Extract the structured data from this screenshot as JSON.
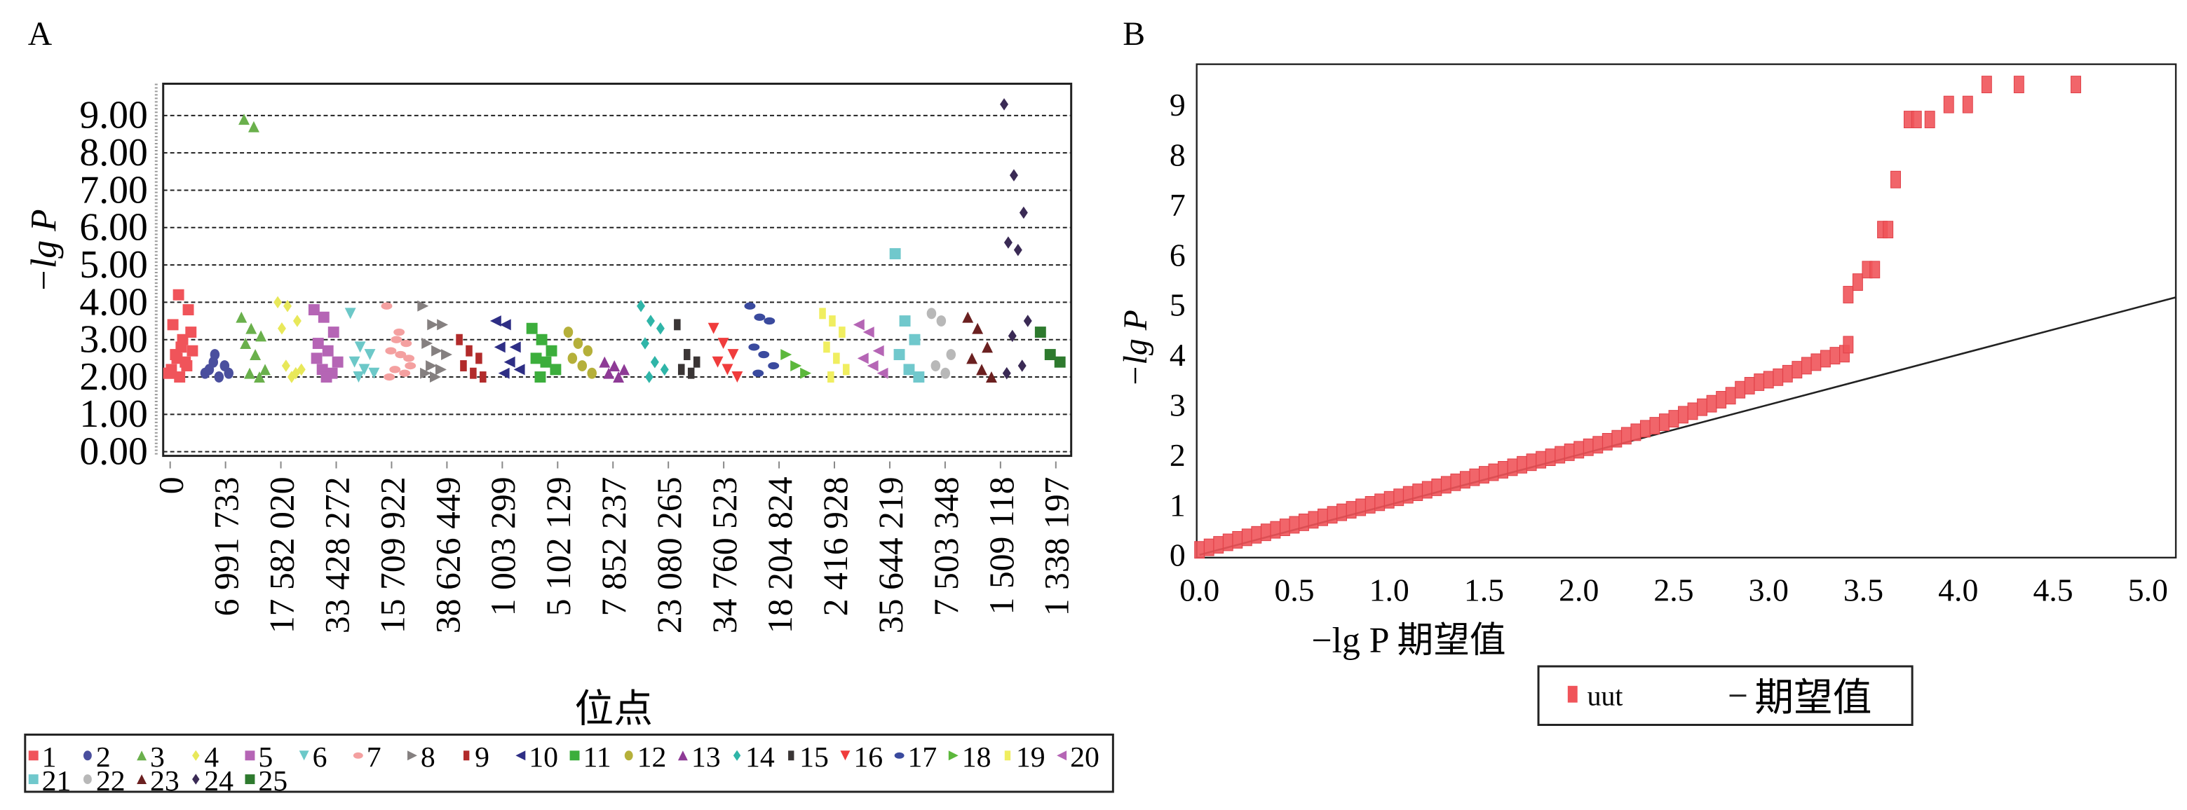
{
  "chart_data": [
    {
      "panel_label": "A",
      "type": "scatter",
      "subtype": "manhattan",
      "ylabel": "−lg P",
      "xlabel": "位点",
      "ylim": [
        0,
        9.8
      ],
      "y_ticks": [
        "0.00",
        "1.00",
        "2.00",
        "3.00",
        "4.00",
        "5.00",
        "6.00",
        "7.00",
        "8.00",
        "9.00"
      ],
      "grid": "horizontal dashed",
      "x_tick_labels": [
        "0",
        "6 991 733",
        "17 582 020",
        "33 428 272",
        "15 709 922",
        "38 626 449",
        "1 003 299",
        "5 102 129",
        "7 852 237",
        "23 080 265",
        "34 760 523",
        "18 204 824",
        "2 416 928",
        "35 644 219",
        "7 503 348",
        "1 509 118",
        "1 338 197"
      ],
      "legend_position": "bottom",
      "series": [
        {
          "name": "1",
          "color": "#f0545a",
          "marker": "square",
          "values": [
            2.1,
            4.2,
            3.8,
            3.4,
            3.0,
            2.7,
            2.5,
            2.3,
            2.2,
            2.8,
            3.2,
            2.6,
            2.4,
            2.1,
            2.0
          ]
        },
        {
          "name": "2",
          "color": "#4a4f9e",
          "marker": "circle",
          "values": [
            2.1,
            2.6,
            2.3,
            2.2,
            2.0,
            2.1,
            2.4
          ]
        },
        {
          "name": "3",
          "color": "#6ab04c",
          "marker": "triangle-up",
          "values": [
            3.6,
            3.3,
            3.1,
            2.9,
            2.6,
            2.2,
            2.1,
            2.0,
            8.9,
            8.7
          ]
        },
        {
          "name": "4",
          "color": "#e8e85a",
          "marker": "diamond",
          "values": [
            4.0,
            3.9,
            3.5,
            3.3,
            2.0,
            2.2,
            2.3,
            2.1
          ]
        },
        {
          "name": "5",
          "color": "#b565b5",
          "marker": "square",
          "values": [
            3.8,
            3.6,
            3.2,
            2.9,
            2.7,
            2.4,
            2.2,
            2.1,
            2.5,
            2.0
          ]
        },
        {
          "name": "6",
          "color": "#6cc8c8",
          "marker": "triangle-down",
          "values": [
            3.7,
            2.8,
            2.6,
            2.4,
            2.2,
            2.1,
            2.0
          ]
        },
        {
          "name": "7",
          "color": "#f4a0a0",
          "marker": "ellipse",
          "values": [
            3.9,
            3.0,
            2.9,
            2.7,
            2.6,
            2.3,
            2.2,
            2.1,
            2.0,
            3.2,
            2.5
          ]
        },
        {
          "name": "8",
          "color": "#858080",
          "marker": "triangle-right",
          "values": [
            3.9,
            3.4,
            3.4,
            2.9,
            2.7,
            2.6,
            2.3,
            2.2,
            2.1,
            2.0
          ]
        },
        {
          "name": "9",
          "color": "#b22b2b",
          "marker": "rect",
          "values": [
            3.0,
            2.7,
            2.5,
            2.3,
            2.1,
            2.0
          ]
        },
        {
          "name": "10",
          "color": "#2e2e85",
          "marker": "triangle-left",
          "values": [
            3.5,
            3.4,
            2.8,
            2.8,
            2.4,
            2.2,
            2.1
          ]
        },
        {
          "name": "11",
          "color": "#3cae3c",
          "marker": "square",
          "values": [
            3.3,
            3.0,
            2.7,
            2.5,
            2.4,
            2.2,
            2.0
          ]
        },
        {
          "name": "12",
          "color": "#b5b03a",
          "marker": "circle",
          "values": [
            3.2,
            2.9,
            2.7,
            2.5,
            2.3,
            2.1
          ]
        },
        {
          "name": "13",
          "color": "#8e3a96",
          "marker": "triangle-up",
          "values": [
            2.4,
            2.3,
            2.2,
            2.1,
            2.0
          ]
        },
        {
          "name": "14",
          "color": "#2fb5a8",
          "marker": "diamond",
          "values": [
            3.9,
            3.5,
            3.3,
            2.9,
            2.4,
            2.2,
            2.0
          ]
        },
        {
          "name": "15",
          "color": "#3a3535",
          "marker": "rect",
          "values": [
            3.4,
            2.6,
            2.4,
            2.2,
            2.1
          ]
        },
        {
          "name": "16",
          "color": "#f03c3c",
          "marker": "triangle-down",
          "values": [
            3.3,
            2.9,
            2.6,
            2.4,
            2.2,
            2.0
          ]
        },
        {
          "name": "17",
          "color": "#3a4a9e",
          "marker": "ellipse",
          "values": [
            3.9,
            3.6,
            3.5,
            2.8,
            2.6,
            2.3,
            2.1
          ]
        },
        {
          "name": "18",
          "color": "#5cb83c",
          "marker": "triangle-right",
          "values": [
            2.6,
            2.3,
            2.1
          ]
        },
        {
          "name": "19",
          "color": "#f0ee60",
          "marker": "rect",
          "values": [
            3.7,
            3.5,
            3.2,
            2.8,
            2.5,
            2.2,
            2.0
          ]
        },
        {
          "name": "20",
          "color": "#b565b5",
          "marker": "triangle-left",
          "values": [
            3.4,
            3.2,
            2.7,
            2.5,
            2.3,
            2.1
          ]
        },
        {
          "name": "21",
          "color": "#70c8cc",
          "marker": "square",
          "values": [
            5.3,
            3.5,
            3.0,
            2.6,
            2.2,
            2.0
          ]
        },
        {
          "name": "22",
          "color": "#b8b8b8",
          "marker": "circle",
          "values": [
            3.7,
            3.5,
            2.6,
            2.3,
            2.1
          ]
        },
        {
          "name": "23",
          "color": "#6b2020",
          "marker": "triangle-up",
          "values": [
            3.6,
            3.3,
            2.8,
            2.5,
            2.2,
            2.0
          ]
        },
        {
          "name": "24",
          "color": "#3a2a55",
          "marker": "diamond",
          "values": [
            9.3,
            7.4,
            6.4,
            5.6,
            5.4,
            3.5,
            3.1,
            2.3,
            2.1
          ]
        },
        {
          "name": "25",
          "color": "#2e7a2e",
          "marker": "square",
          "values": [
            3.2,
            2.6,
            2.4
          ]
        }
      ]
    },
    {
      "panel_label": "B",
      "type": "scatter",
      "subtype": "qq",
      "ylabel": "−lg P",
      "xlabel": "−lg P  期望值",
      "xlim": [
        0,
        5.15
      ],
      "ylim": [
        0,
        9.85
      ],
      "x_ticks": [
        "0.0",
        "0.5",
        "1.0",
        "1.5",
        "2.0",
        "2.5",
        "3.0",
        "3.5",
        "4.0",
        "4.5",
        "5.0"
      ],
      "y_ticks": [
        "0",
        "1",
        "2",
        "3",
        "4",
        "5",
        "6",
        "7",
        "8",
        "9"
      ],
      "legend_position": "bottom",
      "legend": [
        {
          "name": "uut",
          "color": "#f0545a",
          "marker": "square"
        },
        {
          "name": "期望值",
          "color": "#222222",
          "marker": "line"
        }
      ],
      "expected_line": {
        "slope": 1,
        "intercept": 0
      },
      "points": [
        [
          0.0,
          0.1
        ],
        [
          0.05,
          0.15
        ],
        [
          0.1,
          0.2
        ],
        [
          0.15,
          0.25
        ],
        [
          0.2,
          0.3
        ],
        [
          0.25,
          0.35
        ],
        [
          0.3,
          0.4
        ],
        [
          0.35,
          0.45
        ],
        [
          0.4,
          0.5
        ],
        [
          0.45,
          0.55
        ],
        [
          0.5,
          0.6
        ],
        [
          0.55,
          0.65
        ],
        [
          0.6,
          0.7
        ],
        [
          0.65,
          0.75
        ],
        [
          0.7,
          0.8
        ],
        [
          0.75,
          0.85
        ],
        [
          0.8,
          0.9
        ],
        [
          0.85,
          0.95
        ],
        [
          0.9,
          1.0
        ],
        [
          0.95,
          1.05
        ],
        [
          1.0,
          1.1
        ],
        [
          1.05,
          1.15
        ],
        [
          1.1,
          1.2
        ],
        [
          1.15,
          1.25
        ],
        [
          1.2,
          1.3
        ],
        [
          1.25,
          1.35
        ],
        [
          1.3,
          1.4
        ],
        [
          1.35,
          1.45
        ],
        [
          1.4,
          1.5
        ],
        [
          1.45,
          1.55
        ],
        [
          1.5,
          1.6
        ],
        [
          1.55,
          1.65
        ],
        [
          1.6,
          1.7
        ],
        [
          1.65,
          1.75
        ],
        [
          1.7,
          1.8
        ],
        [
          1.75,
          1.85
        ],
        [
          1.8,
          1.9
        ],
        [
          1.85,
          1.95
        ],
        [
          1.9,
          2.0
        ],
        [
          1.95,
          2.05
        ],
        [
          2.0,
          2.1
        ],
        [
          2.05,
          2.15
        ],
        [
          2.1,
          2.2
        ],
        [
          2.15,
          2.26
        ],
        [
          2.2,
          2.32
        ],
        [
          2.25,
          2.38
        ],
        [
          2.3,
          2.45
        ],
        [
          2.35,
          2.52
        ],
        [
          2.4,
          2.58
        ],
        [
          2.45,
          2.65
        ],
        [
          2.5,
          2.72
        ],
        [
          2.55,
          2.8
        ],
        [
          2.6,
          2.87
        ],
        [
          2.65,
          2.95
        ],
        [
          2.7,
          3.02
        ],
        [
          2.75,
          3.1
        ],
        [
          2.8,
          3.18
        ],
        [
          2.85,
          3.3
        ],
        [
          2.9,
          3.38
        ],
        [
          2.95,
          3.45
        ],
        [
          3.0,
          3.5
        ],
        [
          3.05,
          3.55
        ],
        [
          3.1,
          3.62
        ],
        [
          3.15,
          3.7
        ],
        [
          3.2,
          3.78
        ],
        [
          3.25,
          3.85
        ],
        [
          3.3,
          3.92
        ],
        [
          3.35,
          3.98
        ],
        [
          3.4,
          4.02
        ],
        [
          3.42,
          4.2
        ],
        [
          3.42,
          5.2
        ],
        [
          3.47,
          5.45
        ],
        [
          3.52,
          5.7
        ],
        [
          3.56,
          5.7
        ],
        [
          3.6,
          6.5
        ],
        [
          3.63,
          6.5
        ],
        [
          3.67,
          7.5
        ],
        [
          3.74,
          8.7
        ],
        [
          3.78,
          8.7
        ],
        [
          3.85,
          8.7
        ],
        [
          3.95,
          9.0
        ],
        [
          4.05,
          9.0
        ],
        [
          4.15,
          9.4
        ],
        [
          4.32,
          9.4
        ],
        [
          4.62,
          9.4
        ]
      ]
    }
  ]
}
